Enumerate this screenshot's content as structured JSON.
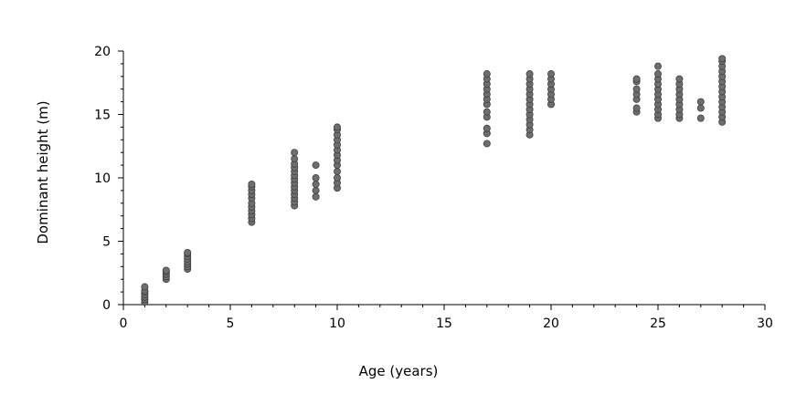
{
  "chart_data": {
    "type": "scatter",
    "xlabel": "Age (years)",
    "ylabel": "Dominant height (m)",
    "xlim": [
      0,
      30
    ],
    "ylim": [
      0,
      20
    ],
    "xticks": [
      0,
      5,
      10,
      15,
      20,
      25,
      30
    ],
    "yticks": [
      0,
      5,
      10,
      15,
      20
    ],
    "grid": false,
    "marker_color": "#6e6e6e",
    "series": [
      {
        "points": [
          [
            1,
            0.2
          ],
          [
            1,
            0.4
          ],
          [
            1,
            0.6
          ],
          [
            1,
            0.8
          ],
          [
            1,
            1.0
          ],
          [
            1,
            1.1
          ],
          [
            1,
            1.4
          ],
          [
            2,
            2.0
          ],
          [
            2,
            2.2
          ],
          [
            2,
            2.4
          ],
          [
            2,
            2.6
          ],
          [
            2,
            2.7
          ],
          [
            3,
            2.8
          ],
          [
            3,
            3.0
          ],
          [
            3,
            3.2
          ],
          [
            3,
            3.4
          ],
          [
            3,
            3.6
          ],
          [
            3,
            3.8
          ],
          [
            3,
            4.0
          ],
          [
            3,
            4.1
          ],
          [
            6,
            6.5
          ],
          [
            6,
            6.8
          ],
          [
            6,
            7.1
          ],
          [
            6,
            7.4
          ],
          [
            6,
            7.7
          ],
          [
            6,
            8.0
          ],
          [
            6,
            8.4
          ],
          [
            6,
            8.7
          ],
          [
            6,
            9.0
          ],
          [
            6,
            9.3
          ],
          [
            6,
            9.5
          ],
          [
            8,
            7.8
          ],
          [
            8,
            8.1
          ],
          [
            8,
            8.4
          ],
          [
            8,
            8.7
          ],
          [
            8,
            9.0
          ],
          [
            8,
            9.3
          ],
          [
            8,
            9.6
          ],
          [
            8,
            9.9
          ],
          [
            8,
            10.2
          ],
          [
            8,
            10.5
          ],
          [
            8,
            10.8
          ],
          [
            8,
            11.1
          ],
          [
            8,
            11.5
          ],
          [
            8,
            12.0
          ],
          [
            9,
            8.5
          ],
          [
            9,
            9.0
          ],
          [
            9,
            9.5
          ],
          [
            9,
            10.0
          ],
          [
            9,
            11.0
          ],
          [
            10,
            9.2
          ],
          [
            10,
            9.6
          ],
          [
            10,
            10.0
          ],
          [
            10,
            10.5
          ],
          [
            10,
            11.0
          ],
          [
            10,
            11.4
          ],
          [
            10,
            11.8
          ],
          [
            10,
            12.2
          ],
          [
            10,
            12.6
          ],
          [
            10,
            13.0
          ],
          [
            10,
            13.4
          ],
          [
            10,
            13.8
          ],
          [
            10,
            14.0
          ],
          [
            17,
            12.7
          ],
          [
            17,
            13.5
          ],
          [
            17,
            13.9
          ],
          [
            17,
            14.8
          ],
          [
            17,
            15.2
          ],
          [
            17,
            15.8
          ],
          [
            17,
            16.2
          ],
          [
            17,
            16.6
          ],
          [
            17,
            17.0
          ],
          [
            17,
            17.4
          ],
          [
            17,
            17.8
          ],
          [
            17,
            18.2
          ],
          [
            19,
            13.4
          ],
          [
            19,
            13.8
          ],
          [
            19,
            14.2
          ],
          [
            19,
            14.6
          ],
          [
            19,
            15.0
          ],
          [
            19,
            15.4
          ],
          [
            19,
            15.8
          ],
          [
            19,
            16.2
          ],
          [
            19,
            16.6
          ],
          [
            19,
            17.0
          ],
          [
            19,
            17.4
          ],
          [
            19,
            17.8
          ],
          [
            19,
            18.2
          ],
          [
            20,
            15.8
          ],
          [
            20,
            16.2
          ],
          [
            20,
            16.6
          ],
          [
            20,
            17.0
          ],
          [
            20,
            17.4
          ],
          [
            20,
            17.8
          ],
          [
            20,
            18.2
          ],
          [
            24,
            15.2
          ],
          [
            24,
            15.5
          ],
          [
            24,
            16.2
          ],
          [
            24,
            16.6
          ],
          [
            24,
            17.0
          ],
          [
            24,
            17.6
          ],
          [
            24,
            17.8
          ],
          [
            25,
            14.7
          ],
          [
            25,
            15.0
          ],
          [
            25,
            15.4
          ],
          [
            25,
            15.8
          ],
          [
            25,
            16.2
          ],
          [
            25,
            16.6
          ],
          [
            25,
            17.0
          ],
          [
            25,
            17.4
          ],
          [
            25,
            17.8
          ],
          [
            25,
            18.2
          ],
          [
            25,
            18.8
          ],
          [
            26,
            14.7
          ],
          [
            26,
            15.0
          ],
          [
            26,
            15.4
          ],
          [
            26,
            15.8
          ],
          [
            26,
            16.2
          ],
          [
            26,
            16.6
          ],
          [
            26,
            17.0
          ],
          [
            26,
            17.4
          ],
          [
            26,
            17.8
          ],
          [
            27,
            14.7
          ],
          [
            27,
            15.5
          ],
          [
            27,
            16.0
          ],
          [
            28,
            14.4
          ],
          [
            28,
            14.8
          ],
          [
            28,
            15.2
          ],
          [
            28,
            15.6
          ],
          [
            28,
            16.0
          ],
          [
            28,
            16.4
          ],
          [
            28,
            16.8
          ],
          [
            28,
            17.2
          ],
          [
            28,
            17.6
          ],
          [
            28,
            18.0
          ],
          [
            28,
            18.4
          ],
          [
            28,
            18.8
          ],
          [
            28,
            19.2
          ],
          [
            28,
            19.4
          ]
        ]
      }
    ]
  }
}
